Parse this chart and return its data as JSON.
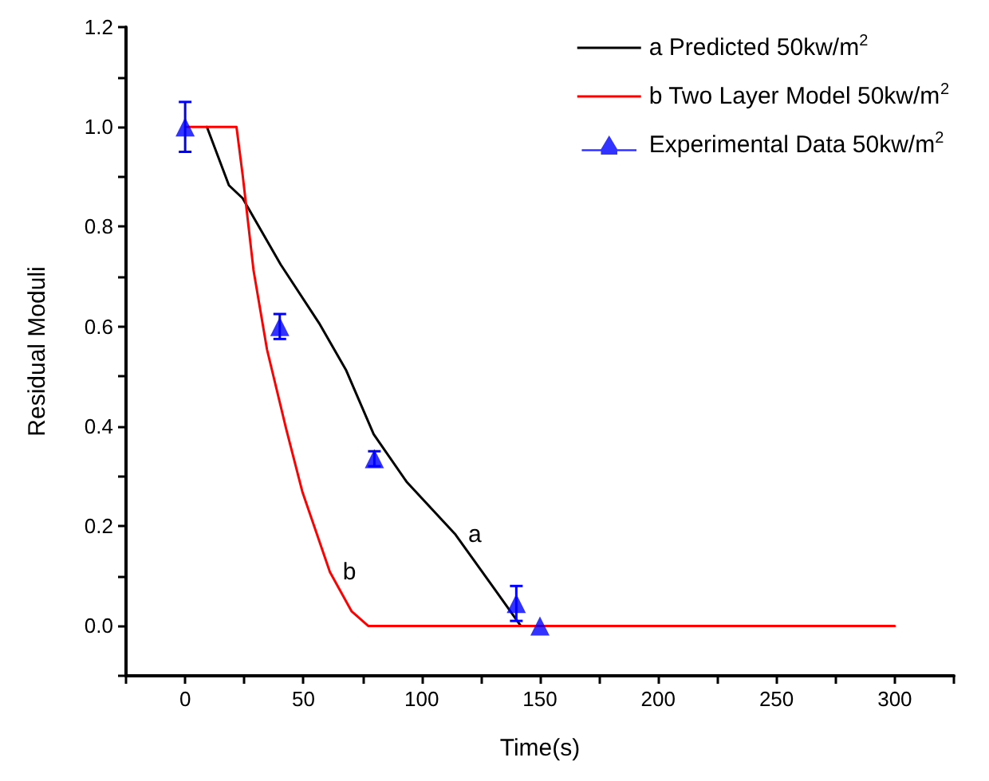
{
  "chart_data": {
    "type": "line",
    "xlabel": "Time(s)",
    "ylabel": "Residual Moduli",
    "xlim": [
      -25,
      325
    ],
    "xticks": [
      {
        "value": -25,
        "label": null
      },
      0,
      {
        "value": 25,
        "label": null
      },
      50,
      {
        "value": 75,
        "label": null
      },
      100,
      {
        "value": 125,
        "label": null
      },
      150,
      {
        "value": 175,
        "label": null
      },
      200,
      {
        "value": 225,
        "label": null
      },
      250,
      {
        "value": 275,
        "label": null
      },
      300,
      {
        "value": 325,
        "label": null
      }
    ],
    "ylim": [
      -0.1,
      1.2
    ],
    "yticks": [
      {
        "value": -0.1,
        "label": null
      },
      {
        "value": 0,
        "label": "0.0"
      },
      {
        "value": 0.1,
        "label": null
      },
      0.2,
      {
        "value": 0.3,
        "label": null
      },
      0.4,
      {
        "value": 0.5,
        "label": null
      },
      0.6,
      {
        "value": 0.7,
        "label": null
      },
      0.8,
      {
        "value": 0.9,
        "label": null
      },
      {
        "value": 1.0,
        "label": "1.0"
      },
      {
        "value": 1.1,
        "label": null
      },
      1.2
    ],
    "grid": false,
    "legend": "top right",
    "line_style": "solid",
    "series": [
      {
        "name": "a Predicted 50kw/m$^{2}$",
        "type": "line",
        "color": "#000000",
        "marker": "none",
        "x": [
          9.2,
          18.5,
          24.3,
          40.4,
          56.6,
          68.1,
          79.7,
          93.6,
          114.3,
          130.5,
          141.9
        ],
        "values": [
          1.0,
          0.883,
          0.857,
          0.724,
          0.607,
          0.512,
          0.384,
          0.289,
          0.183,
          0.076,
          0.0
        ]
      },
      {
        "name": "b Two Layer Model 50kw/m$^{2}$",
        "type": "line",
        "color": "#ff0000",
        "marker": "none",
        "x": [
          0,
          21.7,
          24.3,
          28.9,
          34.6,
          42.7,
          49.6,
          61.2,
          70.4,
          77.4,
          300
        ],
        "values": [
          1.0,
          1.0,
          0.904,
          0.713,
          0.554,
          0.395,
          0.268,
          0.108,
          0.029,
          0.0,
          0.0
        ]
      },
      {
        "name": "Experimental Data 50kw/m$^{2}$",
        "type": "scatter",
        "color": "#0000ff",
        "marker": "triangle",
        "x": [
          0,
          40,
          80,
          140,
          150
        ],
        "values": [
          1.0,
          0.6,
          0.335,
          0.045,
          0.0
        ],
        "errors": [
          0.05,
          0.025,
          0.015,
          0.035,
          null
        ]
      }
    ],
    "annotations": [
      {
        "text": "a",
        "x": 114.3,
        "y": 0.183
      },
      {
        "text": "b",
        "x": 61.2,
        "y": 0.108
      }
    ]
  }
}
